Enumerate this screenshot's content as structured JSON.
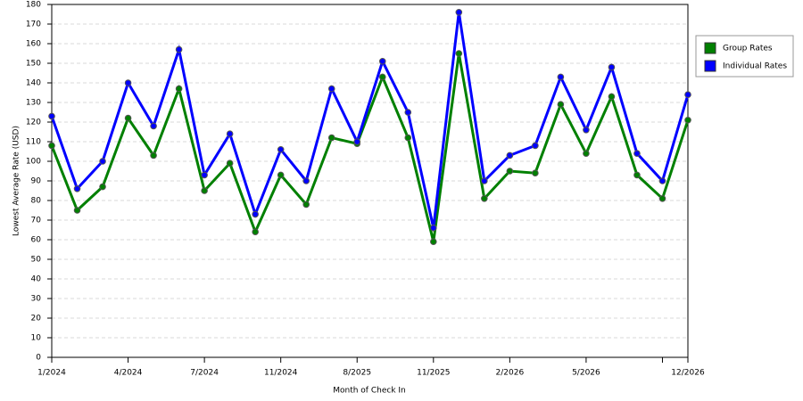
{
  "chart_data": {
    "type": "line",
    "x_label": "Month of Check In",
    "y_label": "Lowest Average Rate (USD)",
    "categories": [
      "1/2024",
      null,
      null,
      "4/2024",
      null,
      null,
      "7/2024",
      null,
      null,
      "11/2024",
      null,
      null,
      "8/2025",
      null,
      null,
      "11/2025",
      null,
      null,
      "2/2026",
      null,
      null,
      "5/2026",
      null,
      null,
      null,
      "12/2026"
    ],
    "series": [
      {
        "name": "Group Rates",
        "color": "#008000",
        "values": [
          108,
          75,
          87,
          122,
          103,
          137,
          85,
          99,
          64,
          93,
          78,
          112,
          109,
          143,
          112,
          59,
          155,
          81,
          95,
          94,
          129,
          104,
          133,
          93,
          81,
          121
        ]
      },
      {
        "name": "Individual Rates",
        "color": "#0000ff",
        "values": [
          123,
          86,
          100,
          140,
          118,
          157,
          93,
          114,
          73,
          106,
          90,
          137,
          110,
          151,
          125,
          66,
          176,
          90,
          103,
          108,
          143,
          116,
          148,
          104,
          90,
          134
        ]
      }
    ],
    "ylim": [
      0,
      180
    ],
    "yticks": [
      0,
      10,
      20,
      30,
      40,
      50,
      60,
      70,
      80,
      90,
      100,
      110,
      120,
      130,
      140,
      150,
      160,
      170,
      180
    ],
    "grid": true,
    "legend": "right"
  }
}
